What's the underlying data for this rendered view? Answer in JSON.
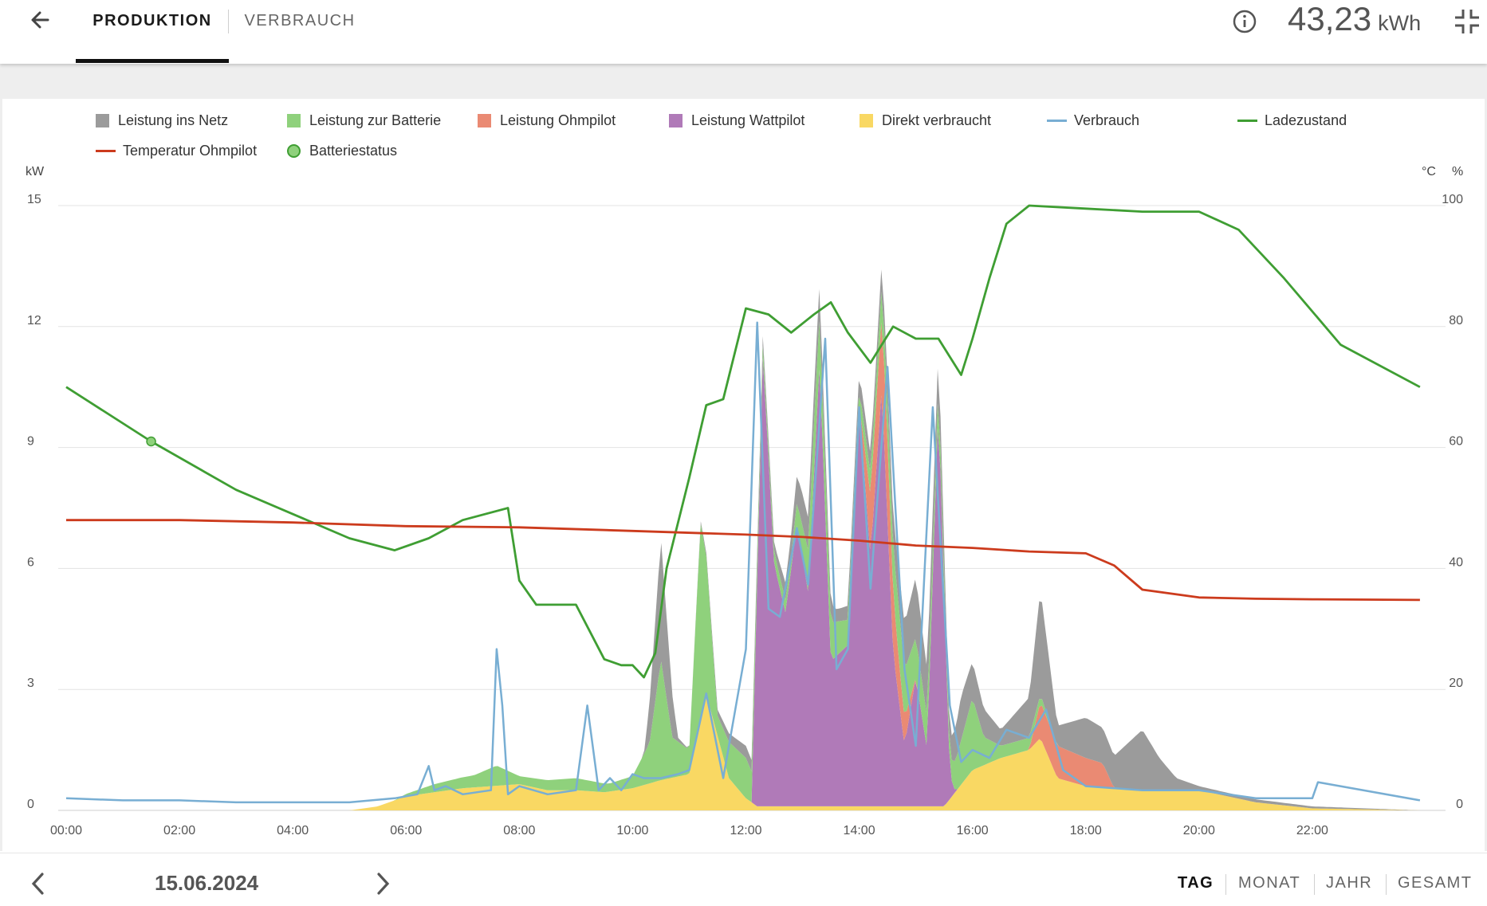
{
  "tabs": [
    {
      "label": "PRODUKTION",
      "active": true
    },
    {
      "label": "VERBRAUCH",
      "active": false
    }
  ],
  "header": {
    "energy_value": "43,23",
    "energy_unit": "kWh",
    "icons": [
      "back-arrow-icon",
      "info-icon",
      "collapse-icon"
    ]
  },
  "legend": [
    {
      "label": "Leistung ins Netz",
      "kind": "square",
      "color": "#9b9b9b"
    },
    {
      "label": "Leistung zur Batterie",
      "kind": "square",
      "color": "#8fd17c"
    },
    {
      "label": "Leistung Ohmpilot",
      "kind": "square",
      "color": "#ea8a73"
    },
    {
      "label": "Leistung Wattpilot",
      "kind": "square",
      "color": "#b07ab8"
    },
    {
      "label": "Direkt verbraucht",
      "kind": "square",
      "color": "#f9d863"
    },
    {
      "label": "Verbrauch",
      "kind": "line",
      "color": "#78aed3"
    },
    {
      "label": "Ladezustand",
      "kind": "line",
      "color": "#3f9e33"
    },
    {
      "label": "Temperatur Ohmpilot",
      "kind": "line",
      "color": "#cc3b1d"
    },
    {
      "label": "Batteriestatus",
      "kind": "circle",
      "color": "#8fd17c"
    }
  ],
  "chart_data": {
    "type": "area",
    "left_axis_unit": "kW",
    "right_axis_unit_temp": "°C",
    "right_axis_unit_pct": "%",
    "left_ticks": [
      "0",
      "3",
      "6",
      "9",
      "12",
      "15"
    ],
    "right_ticks": [
      "0",
      "20",
      "40",
      "60",
      "80",
      "100"
    ],
    "x_ticks": [
      "00:00",
      "02:00",
      "04:00",
      "06:00",
      "08:00",
      "10:00",
      "12:00",
      "14:00",
      "16:00",
      "18:00",
      "20:00",
      "22:00"
    ],
    "left_ylim": [
      0,
      15
    ],
    "right_ylim": [
      0,
      100
    ],
    "x_range_hours": [
      0,
      24
    ],
    "grid": true,
    "legend_position": "top",
    "stacked_series": [
      {
        "name": "Direkt verbraucht",
        "color": "#f9d863",
        "x": [
          0,
          5,
          5.5,
          6,
          7,
          7.5,
          8,
          8.5,
          9,
          9.5,
          10,
          10.5,
          11,
          11.3,
          11.7,
          12,
          12.2,
          12.5,
          13,
          13.5,
          14,
          14.5,
          15,
          15.5,
          16,
          16.5,
          17,
          17.2,
          17.5,
          18,
          19,
          20,
          21,
          22,
          23.9
        ],
        "values": [
          0,
          0,
          0.1,
          0.35,
          0.55,
          0.6,
          0.65,
          0.5,
          0.5,
          0.45,
          0.55,
          0.75,
          0.9,
          2.9,
          0.8,
          0.3,
          0.1,
          0.1,
          0.1,
          0.1,
          0.1,
          0.1,
          0.1,
          0.1,
          1.0,
          1.3,
          1.5,
          1.8,
          0.8,
          0.6,
          0.5,
          0.5,
          0.2,
          0.05,
          0
        ]
      },
      {
        "name": "Leistung Wattpilot",
        "color": "#b07ab8",
        "x": [
          0,
          12.1,
          12.3,
          12.5,
          12.7,
          12.9,
          13.1,
          13.3,
          13.5,
          13.8,
          14.0,
          14.2,
          14.4,
          14.6,
          14.8,
          15.0,
          15.2,
          15.4,
          15.6,
          15.7,
          16.0,
          23.9
        ],
        "values": [
          0,
          0,
          11.2,
          6.0,
          4.8,
          7.0,
          5.3,
          11.0,
          3.6,
          4.0,
          10.0,
          6.2,
          10.4,
          3.8,
          1.5,
          3.2,
          1.4,
          10.0,
          0.6,
          0,
          0,
          0
        ]
      },
      {
        "name": "Leistung Ohmpilot",
        "color": "#ea8a73",
        "x": [
          0,
          14.0,
          14.2,
          14.5,
          14.7,
          15.0,
          17.0,
          17.2,
          17.5,
          18.0,
          18.3,
          18.5,
          23.9
        ],
        "values": [
          0,
          0,
          1.5,
          2.0,
          1.0,
          0,
          0,
          0.9,
          0.8,
          0.7,
          0.6,
          0,
          0
        ]
      },
      {
        "name": "Leistung zur Batterie",
        "color": "#8fd17c",
        "x": [
          0,
          5.8,
          6.5,
          7.2,
          7.6,
          8.0,
          9.0,
          9.6,
          10.0,
          10.3,
          10.5,
          10.7,
          11.0,
          11.2,
          11.5,
          11.7,
          12.0,
          12.3,
          12.8,
          13.2,
          14.0,
          14.3,
          14.7,
          15.0,
          15.6,
          16.0,
          16.2,
          16.5,
          17.0,
          17.5,
          23.9
        ],
        "values": [
          0,
          0,
          0.2,
          0.3,
          0.5,
          0.2,
          0.3,
          0.2,
          0.3,
          1.0,
          3.0,
          1.0,
          0.6,
          4.9,
          0.5,
          0.9,
          1.0,
          0.3,
          0.3,
          1.3,
          0.4,
          0.6,
          1.3,
          1.0,
          0.4,
          1.8,
          0.7,
          0.3,
          0.3,
          0,
          0
        ]
      },
      {
        "name": "Leistung ins Netz",
        "color": "#9b9b9b",
        "x": [
          0,
          10.2,
          10.5,
          10.8,
          11.0,
          12.0,
          12.5,
          13.0,
          13.3,
          13.6,
          14.0,
          14.5,
          15.0,
          15.6,
          15.8,
          16.0,
          16.5,
          17.0,
          17.2,
          17.5,
          18.0,
          18.5,
          19.0,
          19.3,
          19.6,
          20.0,
          23.9
        ],
        "values": [
          0,
          0,
          3.0,
          0.1,
          0,
          0.3,
          0.2,
          0.8,
          0.8,
          0.3,
          0.4,
          0.6,
          1.5,
          0.5,
          1.1,
          0.9,
          0.4,
          1.0,
          2.6,
          0.5,
          1.0,
          0.8,
          1.5,
          0.8,
          0.3,
          0.1,
          0
        ]
      }
    ],
    "line_series": [
      {
        "name": "Verbrauch",
        "axis": "left",
        "color": "#78aed3",
        "x": [
          0,
          1,
          2,
          3,
          4,
          5,
          5.8,
          6.2,
          6.4,
          6.5,
          6.7,
          7.0,
          7.5,
          7.6,
          7.7,
          7.8,
          8.0,
          8.5,
          9.0,
          9.2,
          9.4,
          9.6,
          9.8,
          10.0,
          10.2,
          10.5,
          10.8,
          11.0,
          11.3,
          11.6,
          12.0,
          12.2,
          12.4,
          12.6,
          12.9,
          13.1,
          13.4,
          13.6,
          13.8,
          14.0,
          14.2,
          14.5,
          14.8,
          15.0,
          15.3,
          15.6,
          15.8,
          16.0,
          16.3,
          16.6,
          17.0,
          17.3,
          17.6,
          18.0,
          19.0,
          20.0,
          21.0,
          22.0,
          22.1,
          23.9
        ],
        "values": [
          0.3,
          0.25,
          0.25,
          0.2,
          0.2,
          0.2,
          0.3,
          0.4,
          1.1,
          0.5,
          0.6,
          0.4,
          0.5,
          4.0,
          2.6,
          0.4,
          0.6,
          0.4,
          0.5,
          2.6,
          0.5,
          0.8,
          0.5,
          0.9,
          0.8,
          0.8,
          0.9,
          1.0,
          2.9,
          0.8,
          4.0,
          12.1,
          5.0,
          4.8,
          7.0,
          5.6,
          11.7,
          3.5,
          4.0,
          10.0,
          5.5,
          11.0,
          3.5,
          1.6,
          10.0,
          2.6,
          1.2,
          1.5,
          1.3,
          2.0,
          1.8,
          2.5,
          1.0,
          0.6,
          0.5,
          0.5,
          0.3,
          0.3,
          0.7,
          0.25
        ]
      },
      {
        "name": "Ladezustand",
        "axis": "right",
        "color": "#3f9e33",
        "x": [
          0,
          1.5,
          3,
          5,
          5.8,
          6.4,
          7.0,
          7.8,
          8.0,
          8.3,
          8.6,
          9.0,
          9.5,
          9.8,
          10.0,
          10.2,
          10.4,
          10.6,
          11.0,
          11.3,
          11.6,
          12.0,
          12.4,
          12.8,
          13.2,
          13.5,
          13.8,
          14.2,
          14.6,
          15.0,
          15.4,
          15.8,
          16.0,
          16.3,
          16.6,
          17.0,
          18.0,
          19.0,
          20.0,
          20.7,
          21.5,
          22.5,
          23.9
        ],
        "values": [
          70,
          61,
          53,
          45,
          43,
          45,
          48,
          50,
          38,
          34,
          34,
          34,
          25,
          24,
          24,
          22,
          26,
          40,
          55,
          67,
          68,
          83,
          82,
          79,
          82,
          84,
          79,
          74,
          80,
          78,
          78,
          72,
          78,
          88,
          97,
          100,
          99.5,
          99,
          99,
          96,
          88,
          77,
          70
        ]
      },
      {
        "name": "Temperatur Ohmpilot",
        "axis": "right",
        "color": "#cc3b1d",
        "x": [
          0,
          2,
          4,
          6,
          8,
          10,
          12,
          13,
          14,
          15,
          16,
          17,
          18,
          18.5,
          19,
          20,
          21,
          22,
          23.9
        ],
        "values": [
          48,
          48,
          47.6,
          47,
          46.8,
          46.2,
          45.6,
          45.2,
          44.6,
          43.8,
          43.4,
          42.8,
          42.5,
          40.5,
          36.5,
          35.2,
          35,
          34.9,
          34.8
        ]
      }
    ],
    "points": [
      {
        "name": "Batteriestatus",
        "axis": "right",
        "x": 1.5,
        "value": 61,
        "color": "#8fd17c"
      }
    ]
  },
  "footer": {
    "date": "15.06.2024",
    "periods": [
      {
        "label": "TAG",
        "active": true
      },
      {
        "label": "MONAT",
        "active": false
      },
      {
        "label": "JAHR",
        "active": false
      },
      {
        "label": "GESAMT",
        "active": false
      }
    ]
  }
}
